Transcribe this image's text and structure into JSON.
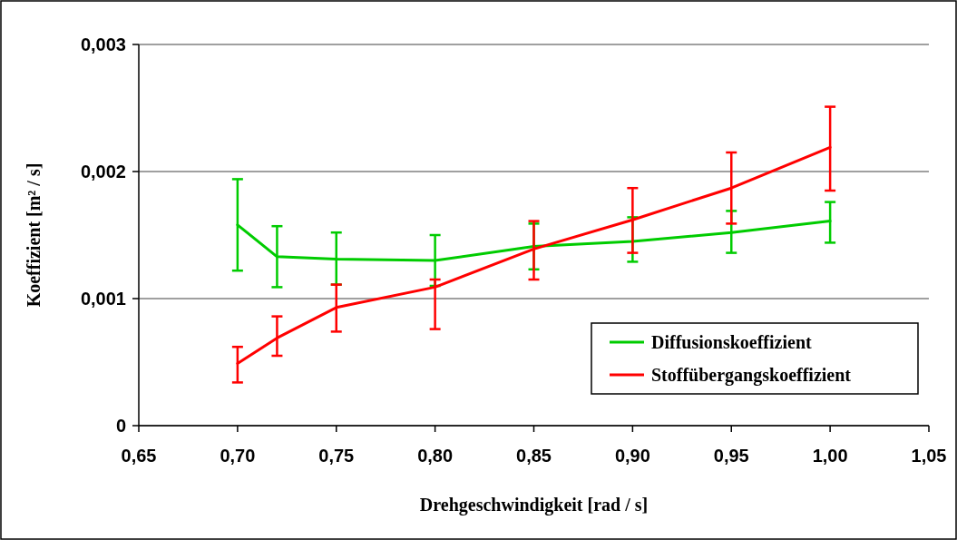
{
  "chart_data": {
    "type": "line",
    "xlabel": "Drehgeschwindigkeit [rad / s]",
    "ylabel": "Koeffizient [m² / s]",
    "x": [
      0.7,
      0.72,
      0.75,
      0.8,
      0.85,
      0.9,
      0.95,
      1.0
    ],
    "series": [
      {
        "name": "Diffusionskoeffizient",
        "color": "#00cc00",
        "values": [
          0.00158,
          0.00133,
          0.00131,
          0.0013,
          0.00141,
          0.00145,
          0.00152,
          0.00161
        ],
        "errors": [
          [
            0.00122,
            0.00194
          ],
          [
            0.00109,
            0.00157
          ],
          [
            0.00111,
            0.00152
          ],
          [
            0.0011,
            0.0015
          ],
          [
            0.00123,
            0.00159
          ],
          [
            0.00129,
            0.00164
          ],
          [
            0.00136,
            0.00169
          ],
          [
            0.00144,
            0.00176
          ]
        ]
      },
      {
        "name": "Stoffübergangskoeffizient",
        "color": "#ff0000",
        "values": [
          0.00049,
          0.00069,
          0.00093,
          0.00109,
          0.00139,
          0.00162,
          0.00187,
          0.00219
        ],
        "errors": [
          [
            0.00034,
            0.00062
          ],
          [
            0.00055,
            0.00086
          ],
          [
            0.00074,
            0.00111
          ],
          [
            0.00076,
            0.00115
          ],
          [
            0.00115,
            0.00161
          ],
          [
            0.00136,
            0.00187
          ],
          [
            0.00159,
            0.00215
          ],
          [
            0.00185,
            0.00251
          ]
        ]
      }
    ],
    "xlim": [
      0.65,
      1.05
    ],
    "xticks": [
      {
        "value": 0.65,
        "label": "0,65"
      },
      {
        "value": 0.7,
        "label": "0,70"
      },
      {
        "value": 0.75,
        "label": "0,75"
      },
      {
        "value": 0.8,
        "label": "0,80"
      },
      {
        "value": 0.85,
        "label": "0,85"
      },
      {
        "value": 0.9,
        "label": "0,90"
      },
      {
        "value": 0.95,
        "label": "0,95"
      },
      {
        "value": 1.0,
        "label": "1,00"
      },
      {
        "value": 1.05,
        "label": "1,05"
      }
    ],
    "ylim": [
      0,
      0.003
    ],
    "yticks": [
      0,
      {
        "value": 0.001,
        "label": "0,001"
      },
      {
        "value": 0.002,
        "label": "0,002"
      },
      {
        "value": 0.003,
        "label": "0,003"
      }
    ],
    "grid": "y",
    "legend": "bottom right",
    "marker": "none",
    "line_style": "solid"
  }
}
